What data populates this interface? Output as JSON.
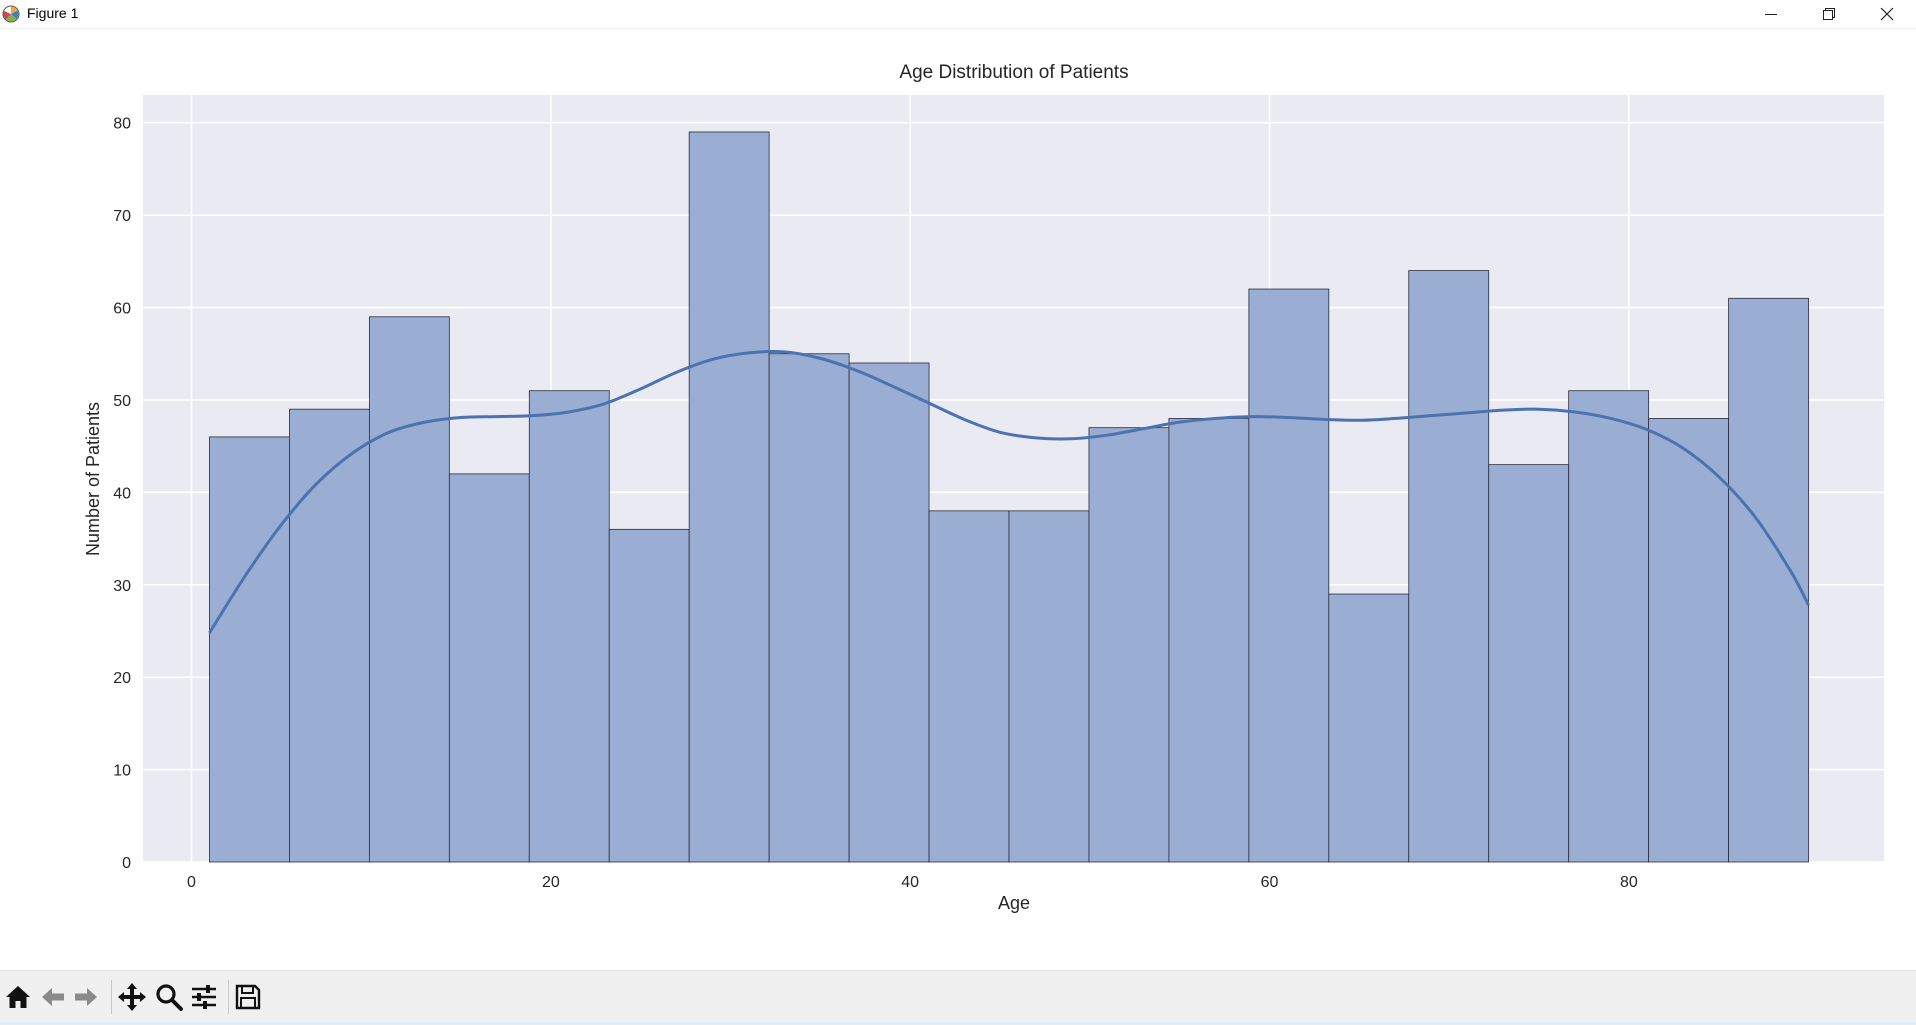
{
  "window": {
    "title": "Figure 1",
    "icons": {
      "app": "matplotlib-logo-icon",
      "minimize": "minimize-icon",
      "maximize": "restore-icon",
      "close": "close-icon"
    }
  },
  "toolbar": {
    "buttons": [
      {
        "name": "home-button",
        "icon": "home-icon"
      },
      {
        "name": "back-button",
        "icon": "arrow-left-icon"
      },
      {
        "name": "forward-button",
        "icon": "arrow-right-icon"
      },
      {
        "name": "pan-button",
        "icon": "move-arrows-icon"
      },
      {
        "name": "zoom-button",
        "icon": "magnifier-icon"
      },
      {
        "name": "configure-subplots-button",
        "icon": "sliders-icon"
      },
      {
        "name": "save-button",
        "icon": "floppy-disk-icon"
      }
    ]
  },
  "colors": {
    "axes_background": "#eaeaf2",
    "grid": "#ffffff",
    "bar_fill": "#9aadd2",
    "bar_edge": "#2b2b3a",
    "kde_line": "#4c72b0",
    "text": "#262626"
  },
  "chart_data": {
    "type": "bar",
    "title": "Age Distribution of Patients",
    "xlabel": "Age",
    "ylabel": "Number of Patients",
    "xlim": [
      -2.7,
      94.2
    ],
    "ylim": [
      0,
      83
    ],
    "xticks": [
      0,
      20,
      40,
      60,
      80
    ],
    "yticks": [
      0,
      10,
      20,
      30,
      40,
      50,
      60,
      70,
      80
    ],
    "grid": true,
    "bin_edges": [
      1,
      5.45,
      9.9,
      14.35,
      18.8,
      23.25,
      27.7,
      32.15,
      36.6,
      41.05,
      45.5,
      49.95,
      54.4,
      58.85,
      63.3,
      67.75,
      72.2,
      76.65,
      81.1,
      85.55,
      90
    ],
    "values": [
      46,
      49,
      59,
      42,
      51,
      36,
      79,
      55,
      54,
      38,
      38,
      47,
      48,
      62,
      29,
      64,
      43,
      51,
      48,
      61
    ],
    "kde": {
      "x": [
        1,
        3,
        5,
        7,
        9,
        11,
        13,
        15,
        17,
        19,
        21,
        23,
        25,
        27,
        29,
        31,
        33,
        35,
        37,
        39,
        41,
        43,
        45,
        47,
        49,
        51,
        53,
        55,
        57,
        59,
        61,
        63,
        65,
        67,
        69,
        71,
        73,
        75,
        77,
        79,
        81,
        83,
        85,
        87,
        89,
        90
      ],
      "y": [
        24.8,
        31.0,
        36.5,
        41.0,
        44.3,
        46.5,
        47.6,
        48.1,
        48.2,
        48.3,
        48.7,
        49.6,
        51.2,
        53.0,
        54.4,
        55.1,
        55.2,
        54.5,
        53.2,
        51.5,
        49.7,
        47.9,
        46.5,
        45.9,
        45.8,
        46.2,
        46.9,
        47.6,
        48.0,
        48.2,
        48.1,
        47.9,
        47.8,
        48.0,
        48.3,
        48.6,
        48.9,
        49.0,
        48.7,
        48.0,
        46.8,
        44.8,
        41.7,
        37.4,
        31.5,
        27.8
      ]
    }
  }
}
